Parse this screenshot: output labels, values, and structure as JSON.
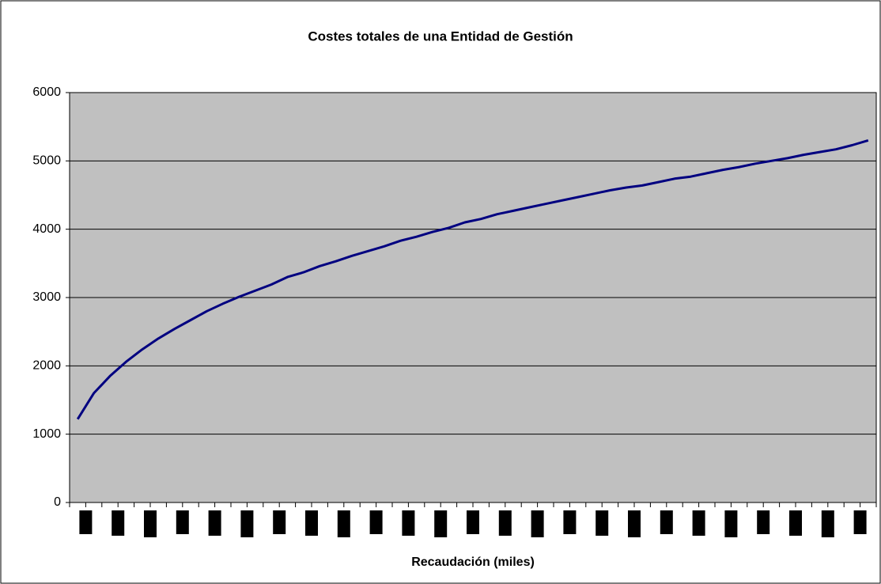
{
  "chart_data": {
    "type": "line",
    "title": "Costes totales de una Entidad de Gestión",
    "x_label": "Recaudación (miles)",
    "categories": [
      null,
      null,
      null,
      null,
      null,
      null,
      null,
      null,
      null,
      null,
      null,
      null,
      null,
      null,
      null,
      null,
      null,
      null,
      null,
      null,
      null,
      null,
      null,
      null,
      null,
      null,
      null,
      null,
      null,
      null,
      null,
      null,
      null,
      null,
      null,
      null,
      null,
      null,
      null,
      null,
      null,
      null,
      null,
      null,
      null,
      null,
      null,
      null,
      null,
      null
    ],
    "values": [
      1220,
      1600,
      1850,
      2060,
      2240,
      2400,
      2540,
      2670,
      2800,
      2910,
      3010,
      3100,
      3190,
      3300,
      3370,
      3460,
      3530,
      3610,
      3680,
      3750,
      3830,
      3890,
      3960,
      4020,
      4100,
      4150,
      4220,
      4270,
      4320,
      4370,
      4420,
      4470,
      4520,
      4570,
      4610,
      4640,
      4690,
      4740,
      4770,
      4820,
      4870,
      4910,
      4960,
      5000,
      5040,
      5090,
      5130,
      5170,
      5230,
      5300
    ],
    "color": "#000080",
    "ylim": [
      0,
      6000
    ],
    "yticks": [
      0,
      1000,
      2000,
      3000,
      4000,
      5000,
      6000
    ],
    "grid": true
  }
}
